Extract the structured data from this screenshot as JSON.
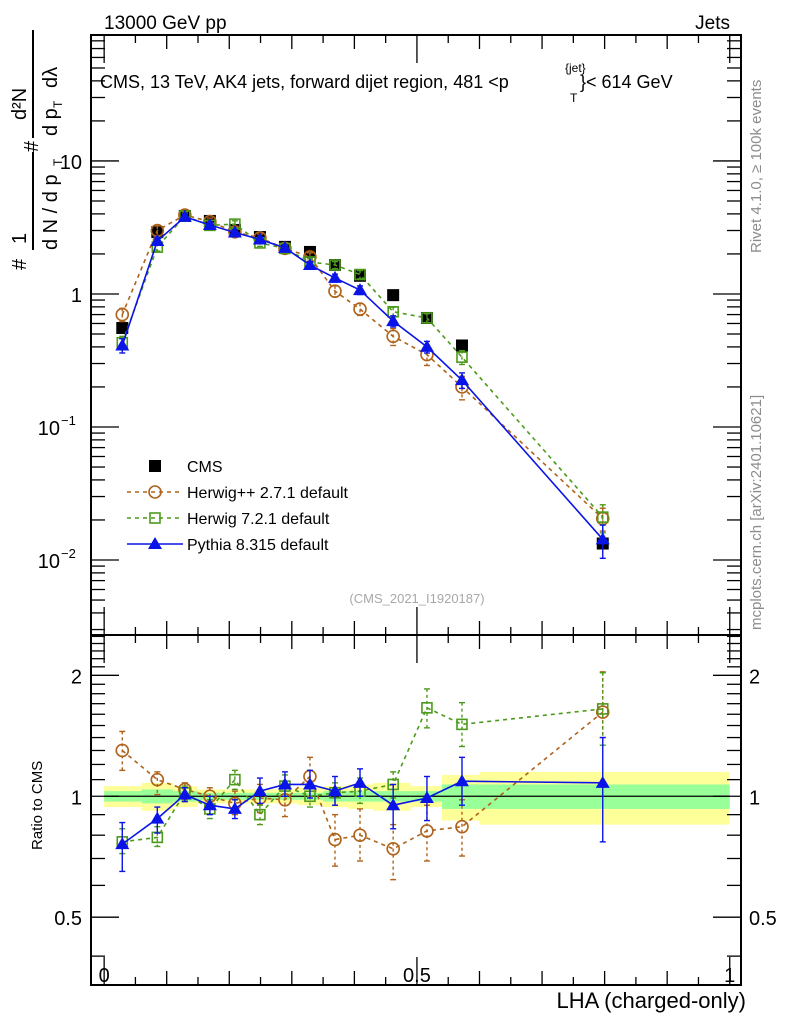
{
  "header": {
    "left": "13000 GeV pp",
    "right": "Jets"
  },
  "side_labels": {
    "rivet": "Rivet 4.1.0, ≥ 100k events",
    "mcplots": "mcplots.cern.ch [arXiv:2401.10621]"
  },
  "chart_data": [
    {
      "type": "scatter",
      "panel": "main",
      "title": "CMS, 13 TeV, AK4 jets, forward dijet region, 481 <p_T^{jet}< 614 GeV",
      "title_parts": {
        "pre": "CMS, 13 TeV, AK4 jets, forward dijet region, 481 <p",
        "sup": "{jet}",
        "sub": "T",
        "post": "}< 614 GeV"
      },
      "ylabel": "1/dN/dp_T dN^2/dp_T dλ",
      "ylabel_parts": {
        "num": "d²N",
        "den1": "d N / d p",
        "den2": "d p",
        "dl": "dλ",
        "hash": "#",
        "one": "1",
        "T": "T"
      },
      "xlabel": "",
      "yscale": "log",
      "xlim": [
        -0.021,
        1.018
      ],
      "ylim": [
        0.00273,
        88.5
      ],
      "y_ticks": [
        {
          "v": 10,
          "label": "10"
        },
        {
          "v": 1,
          "label": "1"
        },
        {
          "v": 0.1,
          "label": "10",
          "exp": "−1"
        },
        {
          "v": 0.01,
          "label": "10",
          "exp": "−2"
        }
      ],
      "watermark": "(CMS_2021_I1920187)",
      "x": [
        0.029,
        0.085,
        0.129,
        0.169,
        0.209,
        0.249,
        0.289,
        0.329,
        0.369,
        0.409,
        0.462,
        0.516,
        0.572,
        0.797
      ],
      "series": [
        {
          "name": "CMS",
          "color": "#000000",
          "marker": "square-filled",
          "line": "none",
          "values": [
            0.555,
            2.92,
            3.86,
            3.54,
            3.03,
            2.68,
            2.26,
            2.07,
            1.65,
            1.37,
            0.98,
            0.66,
            0.41,
            0.0133
          ]
        },
        {
          "name": "Herwig++ 2.7.1 default",
          "color": "#b0621a",
          "marker": "circle-open",
          "line": "dashed",
          "values": [
            0.7,
            3.0,
            3.92,
            3.5,
            2.93,
            2.64,
            2.2,
            1.9,
            1.05,
            0.77,
            0.48,
            0.35,
            0.2,
            0.0205
          ],
          "err": [
            0.08,
            0.25,
            0.25,
            0.22,
            0.2,
            0.18,
            0.16,
            0.14,
            0.1,
            0.08,
            0.07,
            0.06,
            0.04,
            0.004
          ]
        },
        {
          "name": "Herwig 7.2.1 default",
          "color": "#4c9a1c",
          "marker": "square-open",
          "line": "dashed",
          "values": [
            0.43,
            2.25,
            3.85,
            3.28,
            3.35,
            2.42,
            2.2,
            1.74,
            1.65,
            1.4,
            0.735,
            0.66,
            0.335,
            0.021
          ],
          "err": [
            0.05,
            0.15,
            0.2,
            0.15,
            0.2,
            0.14,
            0.13,
            0.1,
            0.1,
            0.1,
            0.06,
            0.05,
            0.04,
            0.005
          ]
        },
        {
          "name": "Pythia 8.315 default",
          "color": "#0a14e6",
          "marker": "triangle-filled",
          "line": "solid",
          "values": [
            0.41,
            2.5,
            3.8,
            3.3,
            2.9,
            2.57,
            2.22,
            1.65,
            1.32,
            1.07,
            0.625,
            0.4,
            0.225,
            0.0143
          ],
          "err": [
            0.05,
            0.15,
            0.2,
            0.15,
            0.14,
            0.13,
            0.12,
            0.1,
            0.09,
            0.08,
            0.06,
            0.04,
            0.03,
            0.004
          ]
        }
      ],
      "legend": {
        "placement": "lower-left"
      }
    },
    {
      "type": "scatter",
      "panel": "ratio",
      "ylabel": "Ratio to CMS",
      "xlabel": "LHA (charged-only)",
      "yscale": "log",
      "xlim": [
        -0.021,
        1.018
      ],
      "ylim": [
        0.339,
        2.52
      ],
      "y_ticks": [
        {
          "v": 2,
          "label": "2"
        },
        {
          "v": 1,
          "label": "1"
        },
        {
          "v": 0.5,
          "label": "0.5"
        }
      ],
      "x_ticks": [
        {
          "v": 0,
          "label": "0"
        },
        {
          "v": 0.5,
          "label": "0.5"
        },
        {
          "v": 1,
          "label": "1"
        }
      ],
      "bands": {
        "edges": [
          0.0,
          0.06,
          0.11,
          0.15,
          0.19,
          0.23,
          0.27,
          0.31,
          0.35,
          0.39,
          0.43,
          0.49,
          0.54,
          0.6,
          1.0
        ],
        "inner": [
          0.03,
          0.04,
          0.03,
          0.02,
          0.02,
          0.02,
          0.02,
          0.02,
          0.03,
          0.03,
          0.03,
          0.03,
          0.07,
          0.07
        ],
        "outer": [
          0.06,
          0.08,
          0.06,
          0.04,
          0.04,
          0.04,
          0.04,
          0.05,
          0.06,
          0.07,
          0.08,
          0.06,
          0.13,
          0.15
        ],
        "inner_color": "#99ff99",
        "outer_color": "#ffff99"
      },
      "x": [
        0.029,
        0.085,
        0.129,
        0.169,
        0.209,
        0.249,
        0.289,
        0.329,
        0.369,
        0.409,
        0.462,
        0.516,
        0.572,
        0.797
      ],
      "series": [
        {
          "name": "Herwig++ 2.7.1 default",
          "color": "#b0621a",
          "marker": "circle-open",
          "line": "dashed",
          "values": [
            1.3,
            1.1,
            1.04,
            1.0,
            0.96,
            0.99,
            0.98,
            1.12,
            0.78,
            0.8,
            0.74,
            0.82,
            0.84,
            1.62
          ],
          "lo": [
            1.16,
            1.01,
            0.98,
            0.94,
            0.9,
            0.91,
            0.89,
            1.0,
            0.67,
            0.69,
            0.62,
            0.69,
            0.71,
            1.4
          ],
          "hi": [
            1.45,
            1.15,
            1.08,
            1.05,
            1.03,
            1.07,
            1.07,
            1.25,
            0.9,
            0.93,
            0.85,
            0.95,
            0.98,
            2.04
          ]
        },
        {
          "name": "Herwig 7.2.1 default",
          "color": "#4c9a1c",
          "marker": "square-open",
          "line": "dashed",
          "values": [
            0.77,
            0.79,
            1.02,
            0.93,
            1.1,
            0.9,
            1.06,
            1.0,
            1.02,
            1.03,
            1.07,
            1.66,
            1.51,
            1.65
          ],
          "lo": [
            0.72,
            0.75,
            0.97,
            0.88,
            1.04,
            0.85,
            1.0,
            0.94,
            0.95,
            0.96,
            0.99,
            1.48,
            1.33,
            1.34
          ],
          "hi": [
            0.83,
            0.84,
            1.06,
            0.98,
            1.16,
            0.95,
            1.13,
            1.07,
            1.08,
            1.11,
            1.15,
            1.85,
            1.71,
            2.03
          ]
        },
        {
          "name": "Pythia 8.315 default",
          "color": "#0a14e6",
          "marker": "triangle-filled",
          "line": "solid",
          "values": [
            0.76,
            0.88,
            1.01,
            0.95,
            0.93,
            1.03,
            1.07,
            1.07,
            1.03,
            1.08,
            0.95,
            0.99,
            1.09,
            1.08
          ],
          "lo": [
            0.65,
            0.81,
            0.97,
            0.9,
            0.88,
            0.96,
            1.0,
            0.99,
            0.95,
            1.0,
            0.83,
            0.87,
            0.95,
            0.77
          ],
          "hi": [
            0.86,
            0.94,
            1.05,
            1.0,
            0.98,
            1.11,
            1.15,
            1.16,
            1.12,
            1.17,
            1.07,
            1.12,
            1.25,
            1.4
          ]
        }
      ]
    }
  ]
}
